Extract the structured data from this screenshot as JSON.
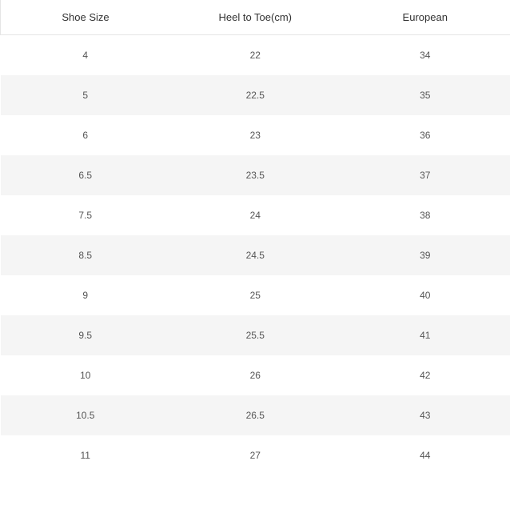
{
  "table": {
    "columns": [
      "Shoe Size",
      "Heel to Toe(cm)",
      "European"
    ],
    "rows": [
      [
        "4",
        "22",
        "34"
      ],
      [
        "5",
        "22.5",
        "35"
      ],
      [
        "6",
        "23",
        "36"
      ],
      [
        "6.5",
        "23.5",
        "37"
      ],
      [
        "7.5",
        "24",
        "38"
      ],
      [
        "8.5",
        "24.5",
        "39"
      ],
      [
        "9",
        "25",
        "40"
      ],
      [
        "9.5",
        "25.5",
        "41"
      ],
      [
        "10",
        "26",
        "42"
      ],
      [
        "10.5",
        "26.5",
        "43"
      ],
      [
        "11",
        "27",
        "44"
      ]
    ],
    "header_bg": "#ffffff",
    "row_bg": "#ffffff",
    "row_alt_bg": "#f5f5f5",
    "text_color": "#555555",
    "header_text_color": "#333333",
    "border_color": "#e5e5e5",
    "font_size_header": 13,
    "font_size_cell": 12
  }
}
